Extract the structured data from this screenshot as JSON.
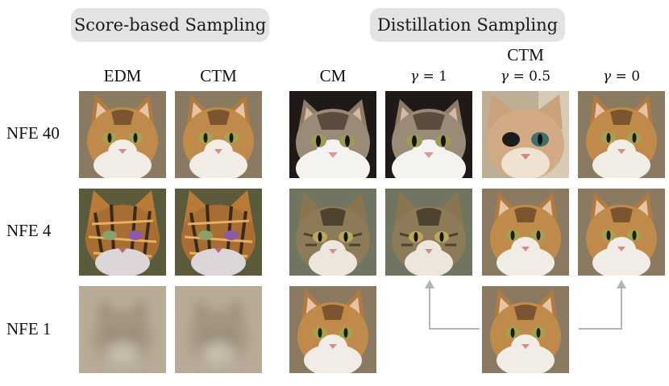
{
  "groups": {
    "score_based": "Score-based Sampling",
    "distillation": "Distillation Sampling"
  },
  "columns": {
    "edm": "EDM",
    "ctm_score": "CTM",
    "cm": "CM",
    "ctm_distill": "CTM",
    "gamma_1": "= 1",
    "gamma_05": "= 0.5",
    "gamma_0": "= 0",
    "gamma_symbol": "γ"
  },
  "rows": {
    "nfe40": "NFE 40",
    "nfe4": "NFE 4",
    "nfe1": "NFE 1"
  },
  "palette": {
    "pill": "#e3e3e3",
    "arrow": "#b5b5b5",
    "tabby": "#b98a4f",
    "white_fur": "#f2eee8",
    "blur": "#b9ab98"
  }
}
